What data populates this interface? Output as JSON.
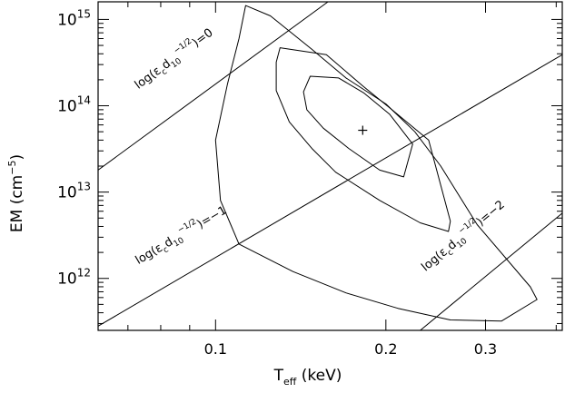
{
  "chart_data": {
    "type": "contour",
    "title": "",
    "xlabel": {
      "main": "T",
      "sub": "eff",
      "unit": " (keV)"
    },
    "ylabel": {
      "main": "EM (cm",
      "sup": "−5",
      "close": ")"
    },
    "x_scale": "log",
    "y_scale": "log",
    "xlim": [
      0.062,
      0.41
    ],
    "ylim": [
      250000000000.0,
      1600000000000000.0
    ],
    "x_ticks": [
      {
        "value": 0.1,
        "label": "0.1"
      },
      {
        "value": 0.2,
        "label": "0.2"
      },
      {
        "value": 0.3,
        "label": "0.3"
      }
    ],
    "y_ticks": [
      {
        "value": 1000000000000.0,
        "base": "10",
        "exp": "12"
      },
      {
        "value": 10000000000000.0,
        "base": "10",
        "exp": "13"
      },
      {
        "value": 100000000000000.0,
        "base": "10",
        "exp": "14"
      },
      {
        "value": 1000000000000000.0,
        "base": "10",
        "exp": "15"
      }
    ],
    "best_fit": {
      "x": 0.182,
      "y": 52000000000000.0
    },
    "contours": [
      {
        "level": "inner",
        "points": [
          [
            0.147,
            220000000000000.0
          ],
          [
            0.165,
            210000000000000.0
          ],
          [
            0.183,
            140000000000000.0
          ],
          [
            0.203,
            80000000000000.0
          ],
          [
            0.223,
            36000000000000.0
          ],
          [
            0.215,
            15000000000000.0
          ],
          [
            0.195,
            18000000000000.0
          ],
          [
            0.172,
            32000000000000.0
          ],
          [
            0.155,
            55000000000000.0
          ],
          [
            0.145,
            90000000000000.0
          ],
          [
            0.143,
            145000000000000.0
          ],
          [
            0.147,
            220000000000000.0
          ]
        ]
      },
      {
        "level": "middle",
        "points": [
          [
            0.13,
            470000000000000.0
          ],
          [
            0.157,
            390000000000000.0
          ],
          [
            0.182,
            170000000000000.0
          ],
          [
            0.205,
            90000000000000.0
          ],
          [
            0.238,
            40000000000000.0
          ],
          [
            0.26,
            4600000000000.0
          ],
          [
            0.258,
            3500000000000.0
          ],
          [
            0.23,
            4400000000000.0
          ],
          [
            0.195,
            8000000000000.0
          ],
          [
            0.163,
            17000000000000.0
          ],
          [
            0.148,
            32000000000000.0
          ],
          [
            0.135,
            65000000000000.0
          ],
          [
            0.128,
            150000000000000.0
          ],
          [
            0.128,
            320000000000000.0
          ],
          [
            0.13,
            470000000000000.0
          ]
        ]
      },
      {
        "level": "outer",
        "points": [
          [
            0.113,
            1450000000000000.0
          ],
          [
            0.125,
            1100000000000000.0
          ],
          [
            0.148,
            450000000000000.0
          ],
          [
            0.17,
            210000000000000.0
          ],
          [
            0.2,
            105000000000000.0
          ],
          [
            0.225,
            50000000000000.0
          ],
          [
            0.25,
            20000000000000.0
          ],
          [
            0.29,
            4200000000000.0
          ],
          [
            0.36,
            800000000000.0
          ],
          [
            0.37,
            570000000000.0
          ],
          [
            0.32,
            320000000000.0
          ],
          [
            0.26,
            330000000000.0
          ],
          [
            0.21,
            450000000000.0
          ],
          [
            0.17,
            680000000000.0
          ],
          [
            0.137,
            1200000000000.0
          ],
          [
            0.11,
            2500000000000.0
          ],
          [
            0.102,
            8000000000000.0
          ],
          [
            0.1,
            40000000000000.0
          ],
          [
            0.105,
            180000000000000.0
          ],
          [
            0.11,
            600000000000000.0
          ],
          [
            0.113,
            1450000000000000.0
          ]
        ]
      }
    ],
    "reference_lines": [
      {
        "param": 0,
        "p1": [
          0.062,
          18000000000000.0
        ],
        "p2": [
          0.158,
          1600000000000000.0
        ],
        "label": {
          "pre": "log(",
          "eps": "ε",
          "eps_sub": "c",
          "d": "d",
          "d_sub": "10",
          "sup": "−1/2",
          "post": ")=0"
        }
      },
      {
        "param": -1,
        "p1": [
          0.062,
          280000000000.0
        ],
        "p2": [
          0.41,
          390000000000000.0
        ],
        "label": {
          "pre": "log(",
          "eps": "ε",
          "eps_sub": "c",
          "d": "d",
          "d_sub": "10",
          "sup": "−1/2",
          "post": ")=−1"
        }
      },
      {
        "param": -2,
        "p1": [
          0.23,
          250000000000.0
        ],
        "p2": [
          0.41,
          5700000000000.0
        ],
        "label": {
          "pre": "log(",
          "eps": "ε",
          "eps_sub": "c",
          "d": "d",
          "d_sub": "10",
          "sup": "−1/2",
          "post": ")=−2"
        }
      }
    ]
  }
}
